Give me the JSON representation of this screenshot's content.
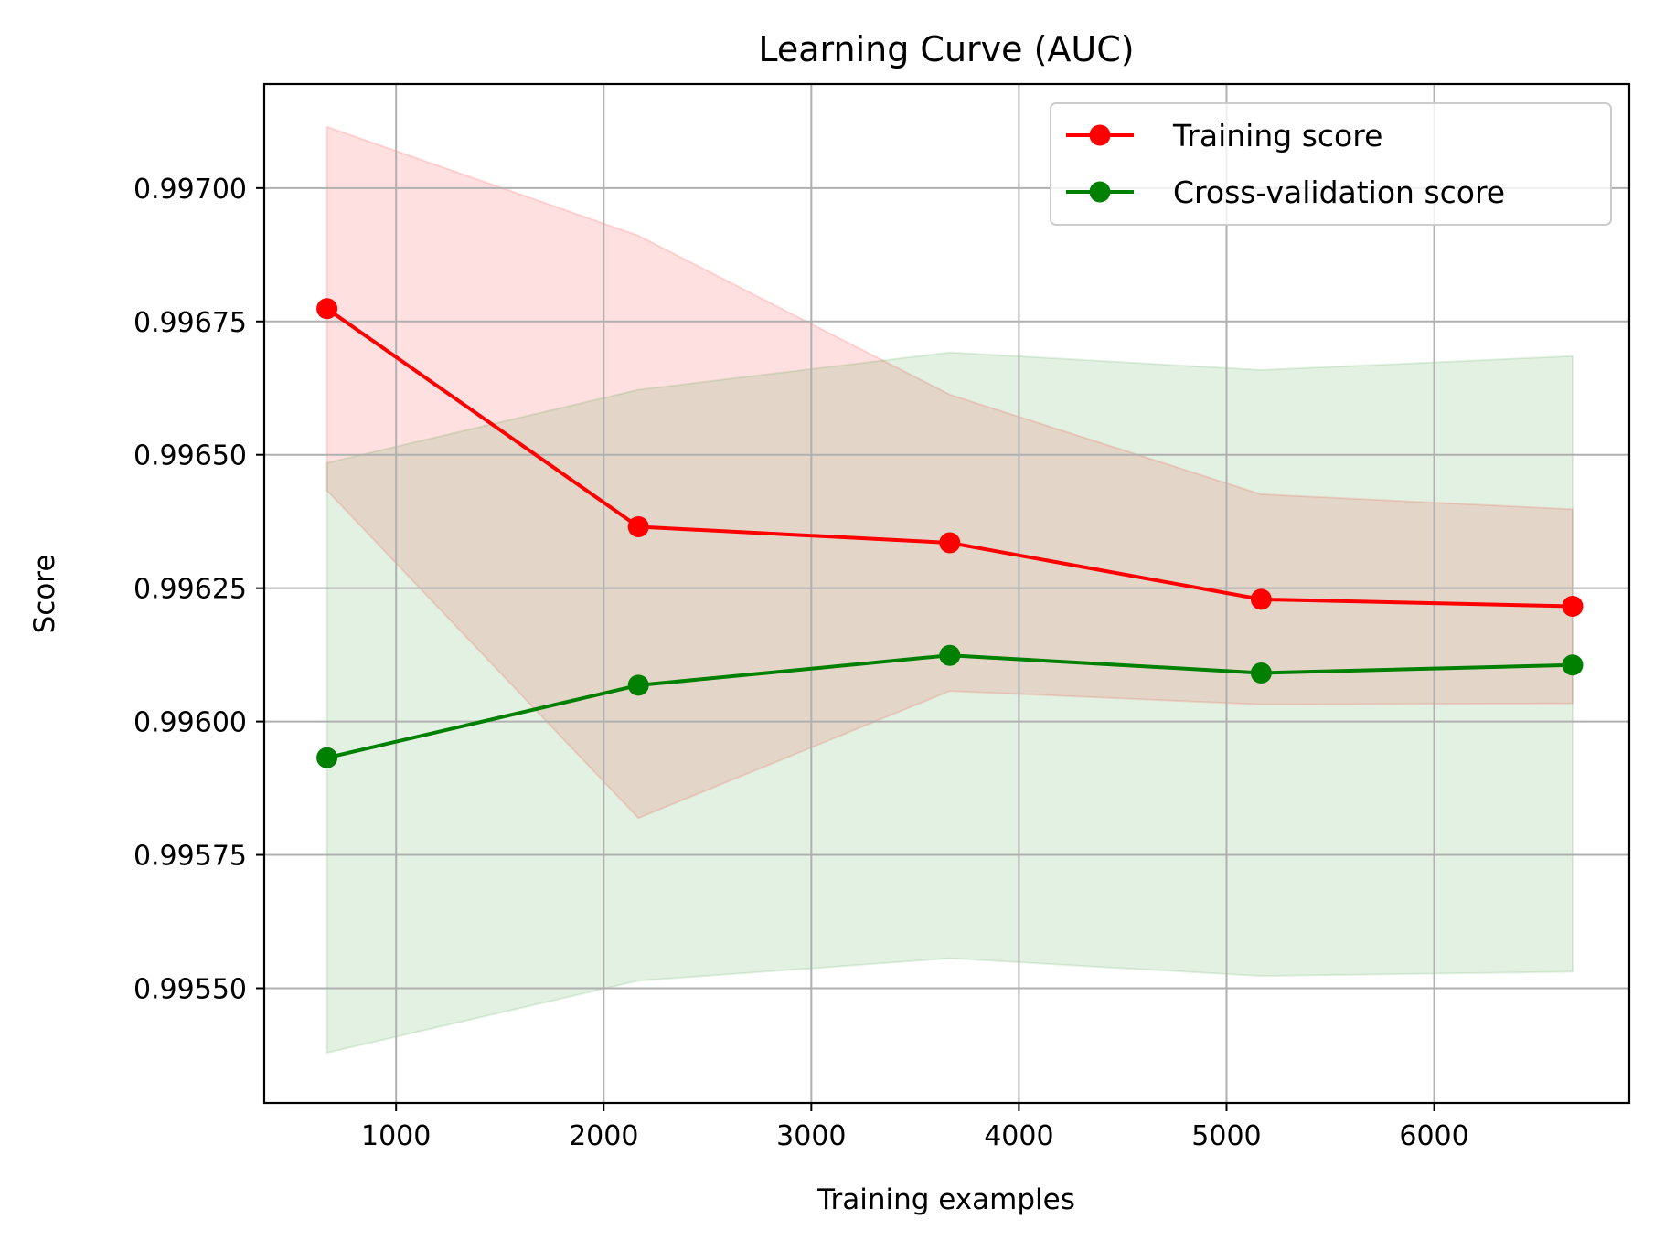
{
  "chart_data": {
    "type": "line",
    "title": "Learning Curve (AUC)",
    "xlabel": "Training examples",
    "ylabel": "Score",
    "xlim": [
      365,
      6940
    ],
    "ylim": [
      0.995285,
      0.997195
    ],
    "xticks": [
      1000,
      2000,
      3000,
      4000,
      5000,
      6000
    ],
    "xtick_labels": [
      "1000",
      "2000",
      "3000",
      "4000",
      "5000",
      "6000"
    ],
    "yticks": [
      0.9955,
      0.99575,
      0.996,
      0.99625,
      0.9965,
      0.99675,
      0.997
    ],
    "ytick_labels": [
      "0.99550",
      "0.99575",
      "0.99600",
      "0.99625",
      "0.99650",
      "0.99675",
      "0.99700"
    ],
    "grid": true,
    "legend_position": "top-right",
    "x": [
      667,
      2167,
      3667,
      5167,
      6667
    ],
    "series": [
      {
        "name": "Training score",
        "color": "#ff0000",
        "values": [
          0.996774,
          0.996365,
          0.996335,
          0.996229,
          0.996216
        ],
        "band_lower": [
          0.996433,
          0.995819,
          0.996057,
          0.996032,
          0.996034
        ],
        "band_upper": [
          0.997115,
          0.996911,
          0.996613,
          0.996426,
          0.996398
        ],
        "band_fill": "#ff0000",
        "band_opacity": 0.12
      },
      {
        "name": "Cross-validation score",
        "color": "#008000",
        "values": [
          0.995932,
          0.996068,
          0.996124,
          0.996091,
          0.996106
        ],
        "band_lower": [
          0.995379,
          0.995514,
          0.995556,
          0.995523,
          0.995531
        ],
        "band_upper": [
          0.996485,
          0.996622,
          0.996692,
          0.996659,
          0.996685
        ],
        "band_fill": "#008000",
        "band_opacity": 0.11
      }
    ]
  }
}
